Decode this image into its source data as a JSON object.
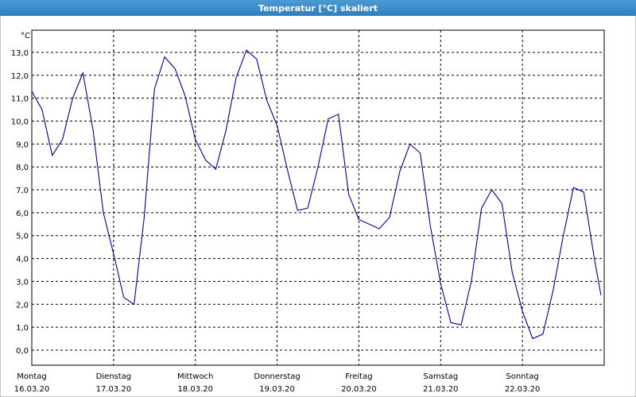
{
  "chart_data": {
    "type": "line",
    "title": "Temperatur [°C] skaliert",
    "y_unit": "°C",
    "xlim": [
      0,
      7
    ],
    "ylim": [
      -0.66,
      13.97
    ],
    "grid": true,
    "xticks": [
      {
        "value": 0,
        "label": "Montag"
      },
      {
        "value": 1,
        "label": "Dienstag"
      },
      {
        "value": 2,
        "label": "Mittwoch"
      },
      {
        "value": 3,
        "label": "Donnerstag"
      },
      {
        "value": 4,
        "label": "Freitag"
      },
      {
        "value": 5,
        "label": "Samstag"
      },
      {
        "value": 6,
        "label": "Sonntag"
      }
    ],
    "xtick_dates": [
      "16.03.20",
      "17.03.20",
      "18.03.20",
      "19.03.20",
      "20.03.20",
      "21.03.20",
      "22.03.20"
    ],
    "yticks": [
      {
        "value": 0,
        "label": "0,0"
      },
      {
        "value": 1,
        "label": "1,0"
      },
      {
        "value": 2,
        "label": "2,0"
      },
      {
        "value": 3,
        "label": "3,0"
      },
      {
        "value": 4,
        "label": "4,0"
      },
      {
        "value": 5,
        "label": "5,0"
      },
      {
        "value": 6,
        "label": "6,0"
      },
      {
        "value": 7,
        "label": "7,0"
      },
      {
        "value": 8,
        "label": "8,0"
      },
      {
        "value": 9,
        "label": "9,0"
      },
      {
        "value": 10,
        "label": "10,0"
      },
      {
        "value": 11,
        "label": "11,0"
      },
      {
        "value": 12,
        "label": "12,0"
      },
      {
        "value": 13,
        "label": "13,0"
      }
    ],
    "x": [
      0,
      0.125,
      0.25,
      0.375,
      0.5,
      0.625,
      0.75,
      0.875,
      1,
      1.125,
      1.25,
      1.375,
      1.5,
      1.625,
      1.75,
      1.875,
      2,
      2.125,
      2.25,
      2.375,
      2.5,
      2.625,
      2.75,
      2.875,
      3,
      3.125,
      3.25,
      3.375,
      3.5,
      3.625,
      3.75,
      3.875,
      4,
      4.125,
      4.25,
      4.375,
      4.5,
      4.625,
      4.75,
      4.875,
      5,
      5.125,
      5.25,
      5.375,
      5.5,
      5.625,
      5.75,
      5.875,
      6,
      6.125,
      6.25,
      6.375,
      6.5,
      6.625,
      6.75,
      6.875,
      6.96
    ],
    "series": [
      {
        "color": "#0000a0",
        "values": [
          11.3,
          10.5,
          8.5,
          9.2,
          11.0,
          12.1,
          9.6,
          6.0,
          4.2,
          2.3,
          2.0,
          5.8,
          11.4,
          12.8,
          12.3,
          11.1,
          9.2,
          8.3,
          7.9,
          9.6,
          11.9,
          13.1,
          12.7,
          10.9,
          9.8,
          7.9,
          6.1,
          6.2,
          8.0,
          10.1,
          10.3,
          6.8,
          5.7,
          5.5,
          5.3,
          5.8,
          7.8,
          9.0,
          8.6,
          5.4,
          2.9,
          1.2,
          1.1,
          3.0,
          6.2,
          7.0,
          6.4,
          3.4,
          1.7,
          0.5,
          0.7,
          2.6,
          5.0,
          7.1,
          6.9,
          4.1,
          2.4
        ]
      }
    ]
  }
}
